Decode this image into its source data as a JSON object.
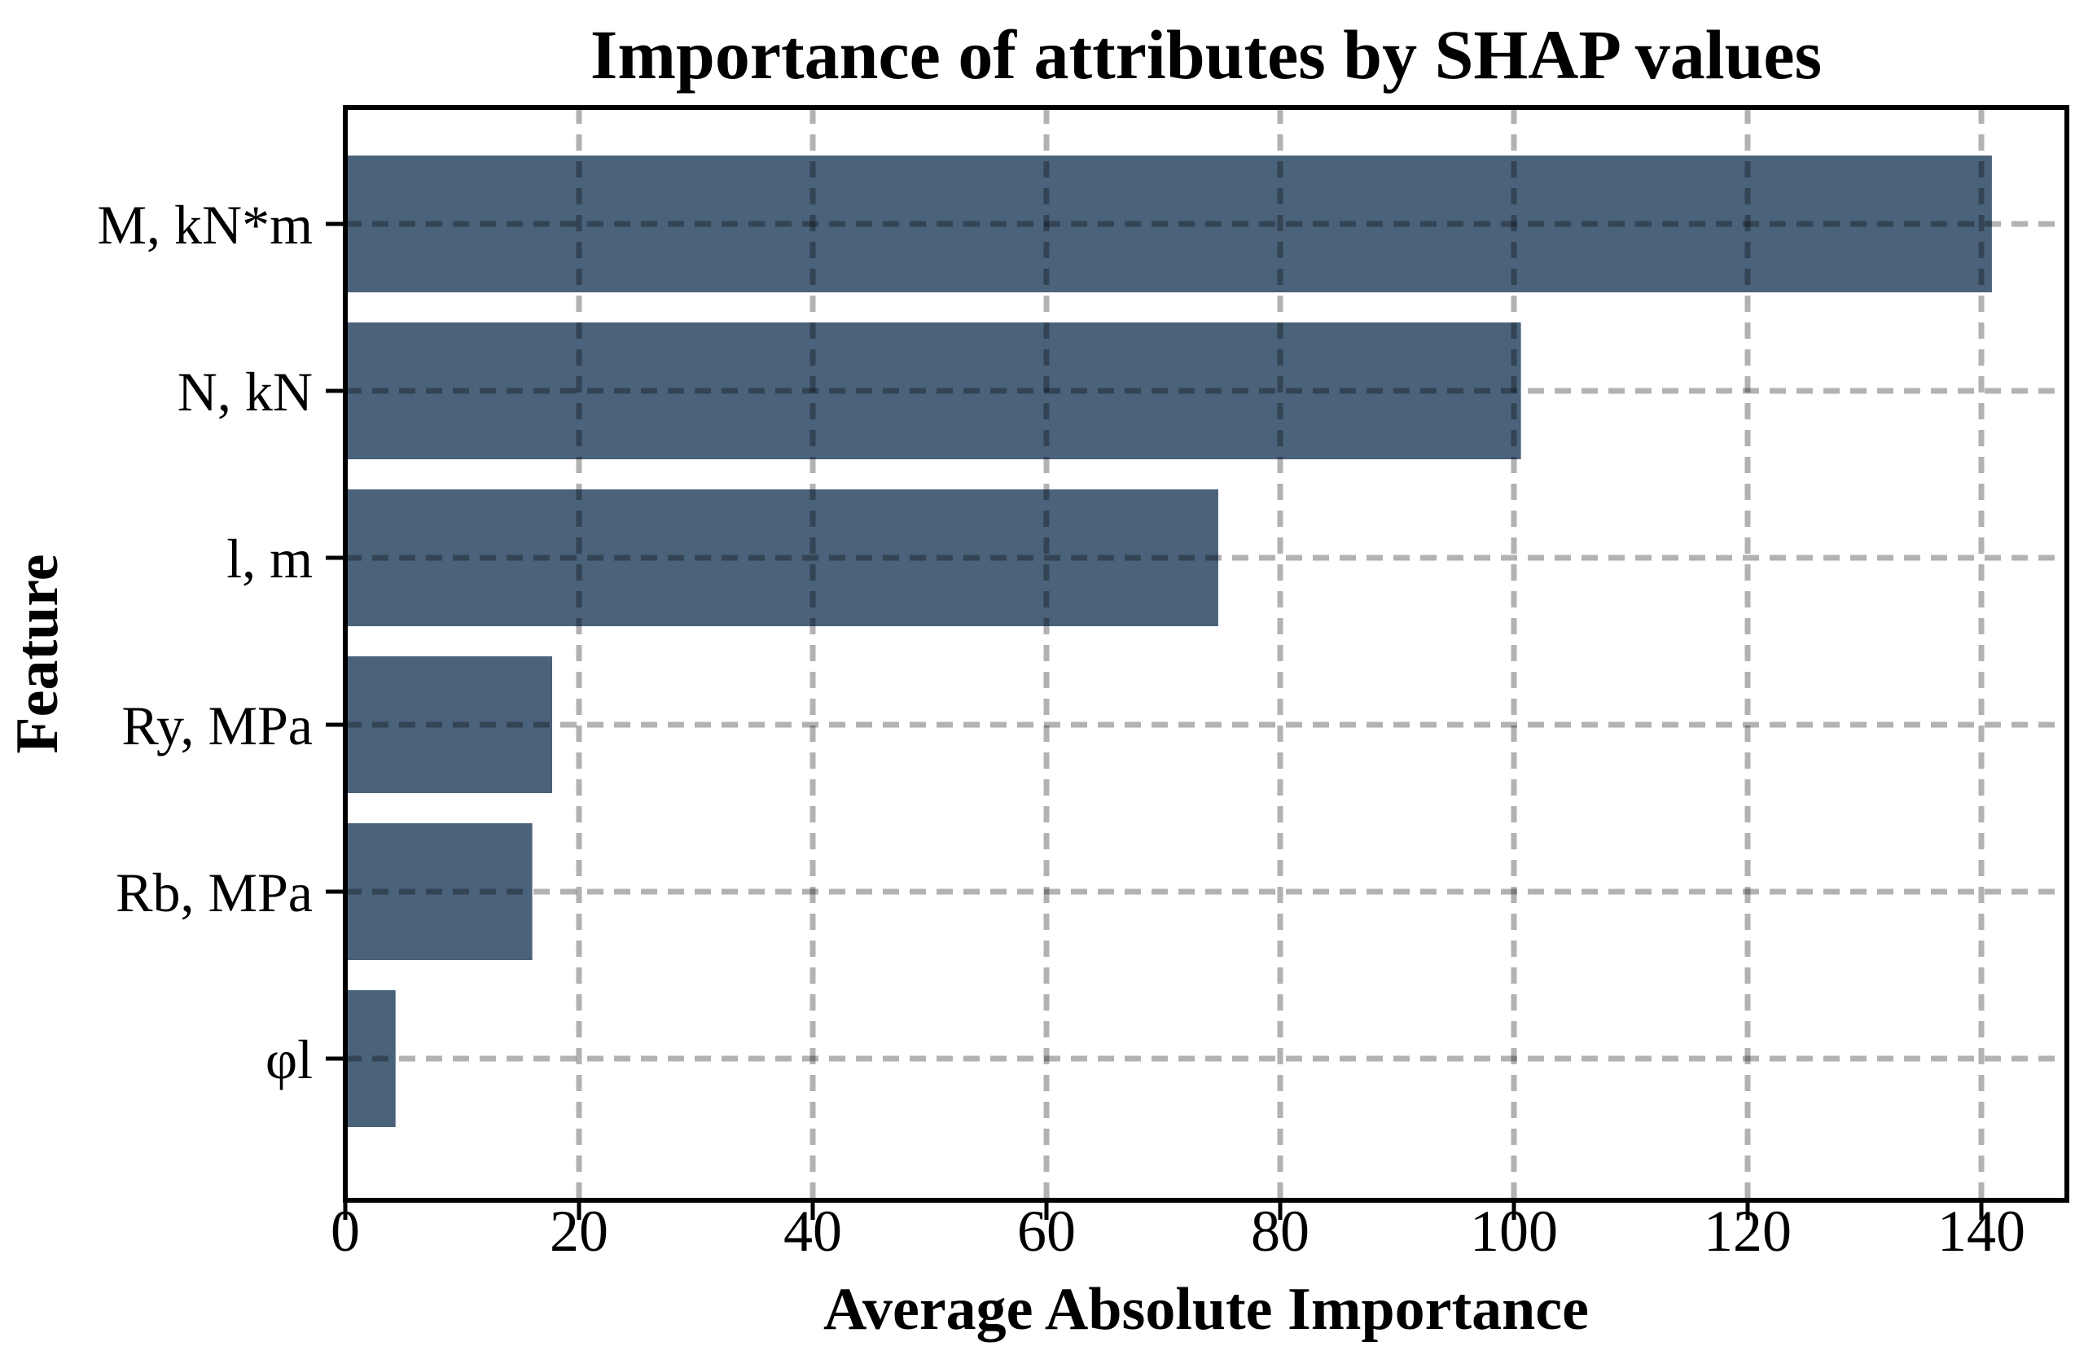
{
  "figure": {
    "background_color": "#ffffff"
  },
  "chart_data": {
    "type": "bar",
    "orientation": "horizontal",
    "title": "Importance of attributes by SHAP values",
    "xlabel": "Average Absolute Importance",
    "ylabel": "Feature",
    "categories": [
      "M, kN*m",
      "N, kN",
      "l, m",
      "Ry, MPa",
      "Rb, MPa",
      "φl"
    ],
    "values": [
      140.9,
      100.6,
      74.7,
      17.7,
      16.0,
      4.3
    ],
    "x_ticks": [
      0,
      20,
      40,
      60,
      80,
      100,
      120,
      140
    ],
    "xlim": [
      0,
      147.3
    ],
    "bar_color": "#4a627a",
    "axis_color": "#000000",
    "grid": {
      "visible": true,
      "axis": "both",
      "style": "dashed",
      "color": "rgba(0,0,0,0.30)",
      "drawn_above_bars": true
    },
    "legend": null
  }
}
